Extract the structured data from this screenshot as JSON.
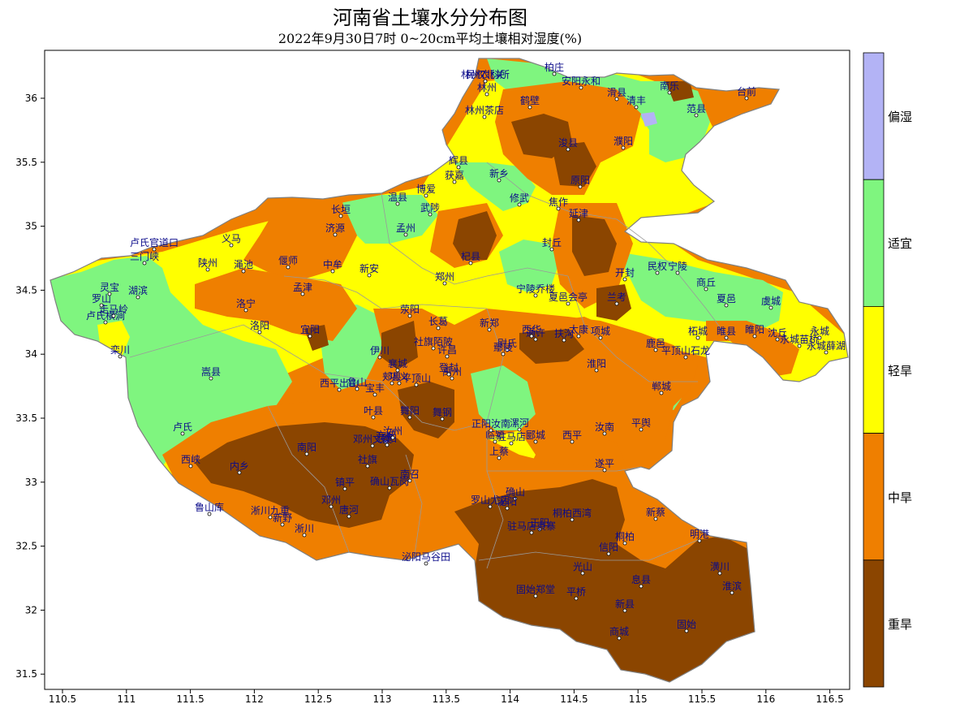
{
  "title": "河南省土壤水分分布图",
  "subtitle": "2022年9月30日7时 0~20cm平均土壤相对湿度(%)",
  "x_ticks": [
    "110.5",
    "111",
    "111.5",
    "112",
    "112.5",
    "113",
    "113.5",
    "114",
    "114.5",
    "115",
    "115.5",
    "116",
    "116.5"
  ],
  "y_ticks": [
    "36",
    "35.5",
    "35",
    "34.5",
    "34",
    "33.5",
    "33",
    "32.5",
    "32",
    "31.5"
  ],
  "legend": [
    {
      "label": "偏湿",
      "color": "#b3b3f5"
    },
    {
      "label": "适宜",
      "color": "#7ff57f"
    },
    {
      "label": "轻旱",
      "color": "#ffff00"
    },
    {
      "label": "中旱",
      "color": "#ef7f00"
    },
    {
      "label": "重旱",
      "color": "#8b4500"
    }
  ],
  "stations": [
    "林州农科所",
    "柏庄",
    "林州",
    "安阳永和",
    "鹤壁",
    "林州茶店",
    "滑县",
    "浚县",
    "濮阳",
    "南乐",
    "清丰",
    "台前",
    "范县",
    "辉县",
    "新乡",
    "获嘉",
    "原阳",
    "长垣",
    "济源",
    "孟州",
    "温县",
    "博爱",
    "武陟",
    "修武",
    "焦作",
    "延津",
    "封丘",
    "开封",
    "兰考",
    "杞县",
    "郑州",
    "中牟",
    "荥阳",
    "新郑",
    "尉氏",
    "通许",
    "睢县",
    "宁陵",
    "民权",
    "商丘",
    "虞城",
    "夏邑",
    "永城",
    "永城薛湖",
    "永城苗桥",
    "柘城",
    "鹿邑",
    "郸城",
    "沈丘",
    "项城",
    "淮阳",
    "太康",
    "扶沟",
    "西华",
    "鄢陵",
    "许昌",
    "长葛",
    "禹州",
    "襄城",
    "郏县",
    "宝丰",
    "鲁山",
    "平顶山",
    "叶县",
    "舞阳",
    "舞钢",
    "漯河",
    "临颍",
    "郾城",
    "上蔡",
    "西平",
    "遂平",
    "汝南",
    "平舆",
    "新蔡",
    "正阳",
    "确山",
    "驻马店",
    "泌阳",
    "桐柏",
    "唐河",
    "社旗",
    "方城",
    "南召",
    "镇平",
    "内乡",
    "南阳",
    "邓州",
    "新野",
    "淅川",
    "西峡",
    "卢氏",
    "卢氏横涧",
    "栾川",
    "嵩县",
    "汝阳",
    "汝州",
    "伊川",
    "宜阳",
    "洛宁",
    "洛阳",
    "孟津",
    "偃师",
    "新安",
    "渑池",
    "义马",
    "陕州",
    "三门峡",
    "灵宝",
    "湖滨",
    "卢氏官道口",
    "走马岭",
    "罗山",
    "光山",
    "新县",
    "商城",
    "固始",
    "潢川",
    "息县",
    "信阳",
    "明港",
    "淮滨",
    "固始郑堂",
    "平桥",
    "罗山尤店",
    "确山瓦岗",
    "泌阳马谷田",
    "桐柏西湾",
    "驻马店袁寨",
    "正阳汝南",
    "西平出山",
    "鲁山库",
    "淅川九重",
    "邓州文渠",
    "社旗陌陂",
    "登封",
    "巩义",
    "平顶山石龙",
    "睢阳",
    "夏邑会亭",
    "宁陵乔楼",
    "民权北关"
  ],
  "colors": {
    "wet": "#b3b3f5",
    "ok": "#7ff57f",
    "light": "#ffff00",
    "mid": "#ef7f00",
    "heavy": "#8b4500",
    "station": "#0a0a8a"
  }
}
